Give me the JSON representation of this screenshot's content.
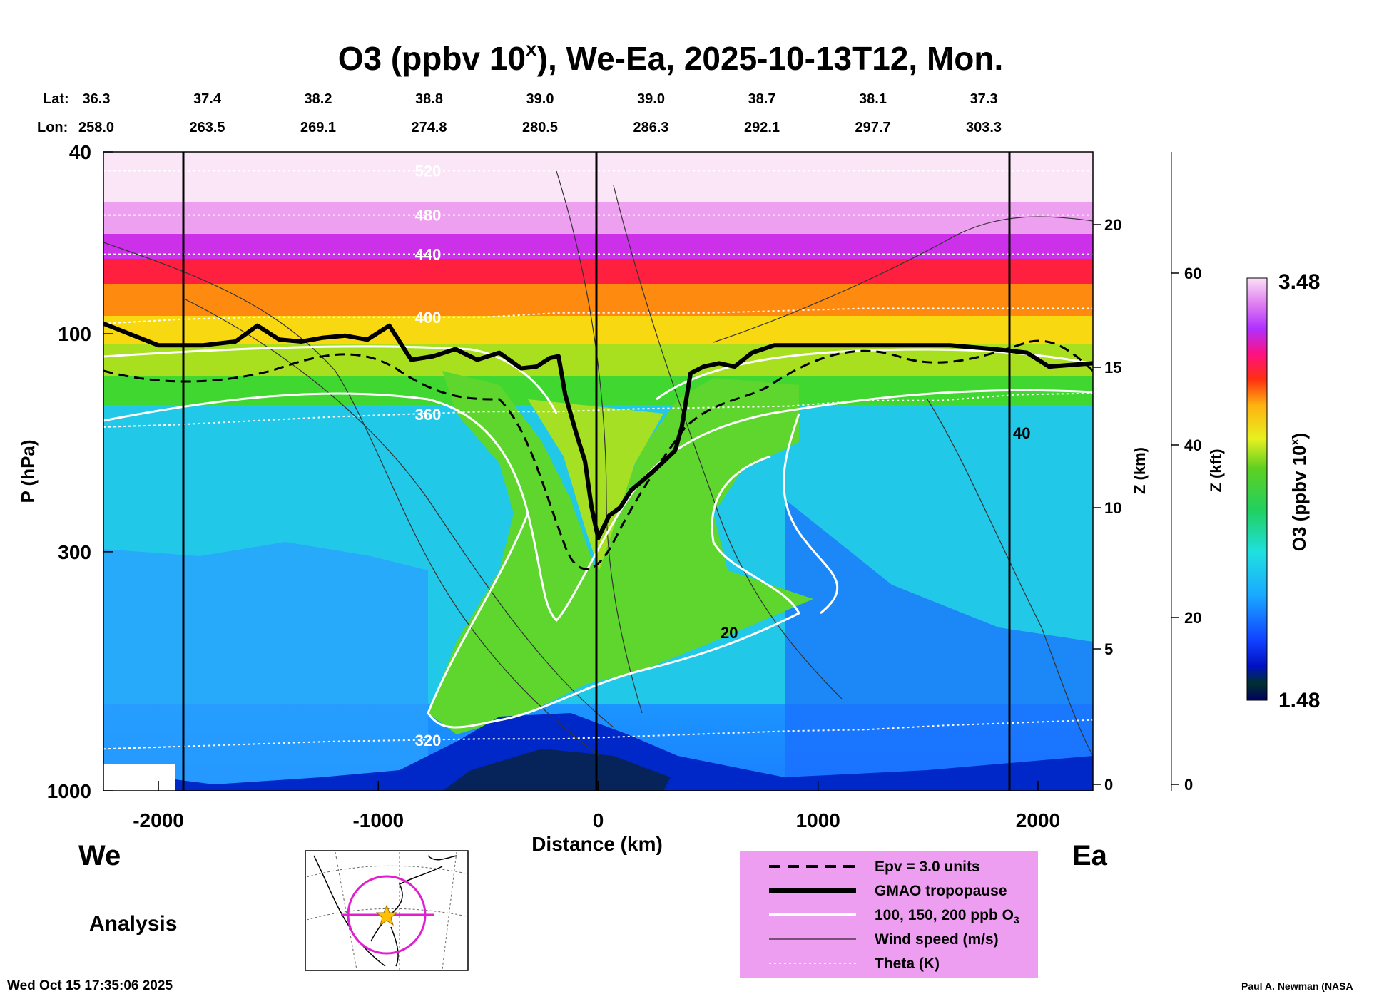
{
  "title": "O3 (ppbv 10",
  "title_sup": "x",
  "title_rest": "), We-Ea, 2025-10-13T12, Mon.",
  "lat_label": "Lat:",
  "lon_label": "Lon:",
  "lats": [
    "36.3",
    "37.4",
    "38.2",
    "38.8",
    "39.0",
    "39.0",
    "38.7",
    "38.1",
    "37.3"
  ],
  "lons": [
    "258.0",
    "263.5",
    "269.1",
    "274.8",
    "280.5",
    "286.3",
    "292.1",
    "297.7",
    "303.3"
  ],
  "ylabel": "P (hPa)",
  "xlabel": "Distance (km)",
  "zkm_label": "Z (km)",
  "zkft_label": "Z (kft)",
  "cbar_label_main": "O3 (ppbv 10",
  "cbar_label_sup": "x",
  "cbar_label_end": ")",
  "cbar_max": "3.48",
  "cbar_min": "1.48",
  "left_direction": "We",
  "right_direction": "Ea",
  "analysis_label": "Analysis",
  "timestamp": "Wed Oct 15 17:35:06 2025",
  "credit": "Paul A. Newman (NASA",
  "colors": {
    "legend_bg": "#ee9ef0",
    "tropopause": "#000000",
    "o3_contour": "#ffffff",
    "map_circle": "#e020d0",
    "map_star": "#ffc000"
  },
  "legend": [
    {
      "style": "dashed",
      "label": "Epv = 3.0 units"
    },
    {
      "style": "thick",
      "label": "GMAO tropopause"
    },
    {
      "style": "white",
      "label": "100, 150, 200 ppb O",
      "sub": "3"
    },
    {
      "style": "thin",
      "label": "Wind speed (m/s)"
    },
    {
      "style": "dotted",
      "label": "Theta (K)"
    }
  ],
  "chart_data": {
    "type": "heatmap",
    "x_axis": {
      "label": "Distance (km)",
      "range": [
        -2250,
        2250
      ],
      "ticks": [
        -2000,
        -1000,
        0,
        1000,
        2000
      ],
      "tick_labels": [
        "-2000",
        "-1000",
        "0",
        "1000",
        "2000"
      ]
    },
    "y_axis": {
      "label": "P (hPa)",
      "scale": "log",
      "range": [
        1000,
        40
      ],
      "ticks": [
        40,
        100,
        300,
        1000
      ],
      "tick_labels": [
        "40",
        "100",
        "300",
        "1000"
      ]
    },
    "z_km_axis": {
      "label": "Z (km)",
      "ticks": [
        0,
        5,
        10,
        15,
        20
      ],
      "tick_labels": [
        "0",
        "5",
        "10",
        "15",
        "20"
      ]
    },
    "z_kft_axis": {
      "label": "Z (kft)",
      "ticks": [
        0,
        20,
        40,
        60
      ],
      "tick_labels": [
        "0",
        "20",
        "40",
        "60"
      ]
    },
    "colorbar": {
      "label": "O3 (ppbv 10^x)",
      "min": 1.48,
      "max": 3.48
    },
    "tropopause": {
      "x": [
        -2250,
        -2000,
        -1800,
        -1650,
        -1550,
        -1450,
        -1350,
        -1250,
        -1150,
        -1050,
        -950,
        -850,
        -750,
        -650,
        -550,
        -450,
        -350,
        -280,
        -220,
        -180,
        -150,
        -100,
        -60,
        -30,
        0,
        50,
        100,
        150,
        200,
        250,
        300,
        350,
        380,
        420,
        480,
        550,
        620,
        700,
        800,
        1000,
        1200,
        1400,
        1600,
        1800,
        1950,
        2050,
        2150,
        2250
      ],
      "p": [
        95,
        106,
        106,
        104,
        96,
        103,
        104,
        102,
        101,
        103,
        96,
        114,
        112,
        108,
        114,
        110,
        119,
        118,
        113,
        112,
        136,
        165,
        190,
        240,
        280,
        250,
        240,
        220,
        210,
        200,
        190,
        180,
        160,
        122,
        118,
        116,
        118,
        110,
        106,
        106,
        106,
        106,
        106,
        108,
        110,
        118,
        117,
        116
      ]
    },
    "theta_levels": [
      {
        "label": "320",
        "p": [
          810,
          800,
          790,
          780,
          775,
          770,
          770,
          760,
          750,
          740,
          735,
          720,
          710,
          700
        ]
      },
      {
        "label": "360",
        "p": [
          160,
          158,
          155,
          152,
          150,
          148,
          148,
          146,
          145,
          144,
          140,
          140,
          136,
          135
        ]
      },
      {
        "label": "400",
        "p": [
          95,
          93,
          92,
          92,
          92,
          92,
          90,
          90,
          90,
          89,
          88,
          88,
          88,
          88
        ]
      },
      {
        "label": "440",
        "p": [
          67,
          67,
          67,
          67,
          67,
          67,
          67,
          67,
          67,
          67,
          67,
          67,
          67,
          67
        ]
      },
      {
        "label": "480",
        "p": [
          55,
          55,
          55,
          55,
          55,
          55,
          55,
          55,
          55,
          55,
          55,
          55,
          55,
          55
        ]
      },
      {
        "label": "520",
        "p": [
          44,
          44,
          44,
          44,
          44,
          44,
          44,
          44,
          44,
          44,
          44,
          44,
          44,
          44
        ]
      }
    ],
    "theta_label_visible": [
      "520",
      "480",
      "440",
      "400",
      "360",
      "320"
    ],
    "wind_labels": [
      "20",
      "40"
    ]
  }
}
